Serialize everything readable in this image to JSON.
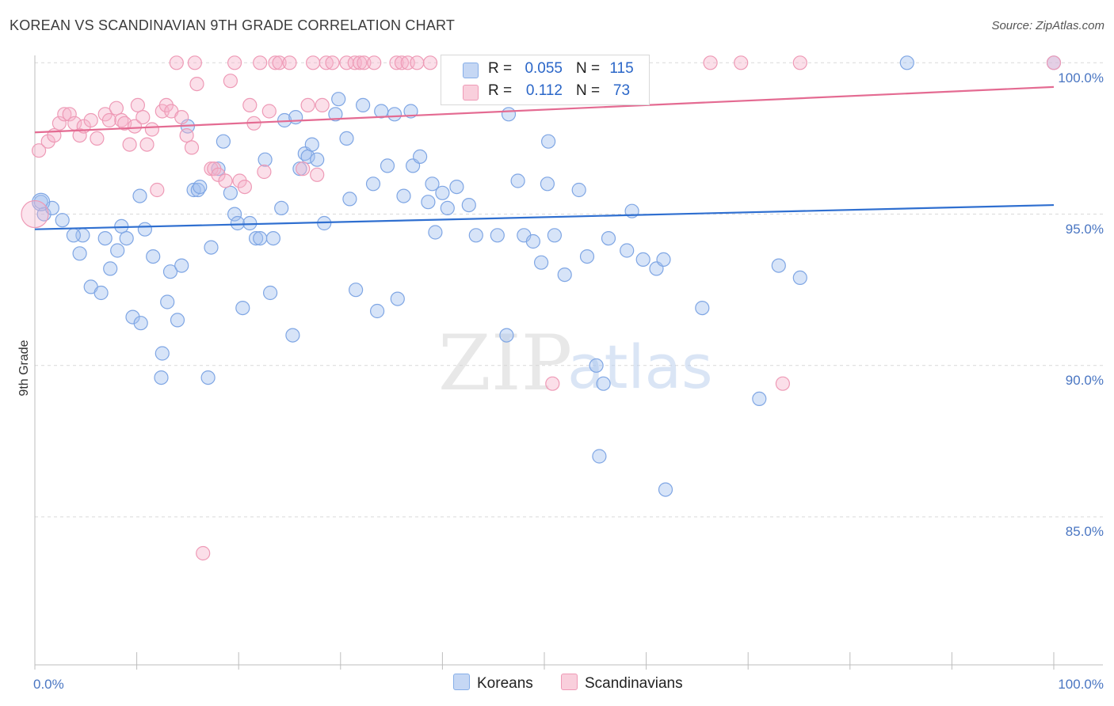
{
  "header": {
    "title": "KOREAN VS SCANDINAVIAN 9TH GRADE CORRELATION CHART",
    "source": "Source: ZipAtlas.com"
  },
  "watermark": {
    "zip": "ZIP",
    "atlas": "atlas"
  },
  "legend": {
    "rows": [
      {
        "r_label": "R =",
        "r_value": "0.055",
        "n_label": "N =",
        "n_value": "115",
        "color": "#a8c4ef"
      },
      {
        "r_label": "R =",
        "r_value": "0.112",
        "n_label": "N =",
        "n_value": "73",
        "color": "#f5b8cb"
      }
    ]
  },
  "bottom_legend": [
    {
      "label": "Koreans",
      "color": "#a8c4ef"
    },
    {
      "label": "Scandinavians",
      "color": "#f5b8cb"
    }
  ],
  "chart_data": {
    "type": "scatter",
    "ylabel": "9th Grade",
    "x_tick_labels": [
      "0.0%",
      "100.0%"
    ],
    "y_tick_labels": [
      "85.0%",
      "90.0%",
      "95.0%",
      "100.0%"
    ],
    "xlim": [
      0,
      100
    ],
    "ylim": [
      80.2,
      100.8
    ],
    "colors": {
      "Koreans": "#5b8fdc",
      "Scandinavians": "#ea7fa1",
      "grid": "#d9d9d9"
    },
    "series": [
      {
        "name": "Koreans",
        "trend": {
          "x": [
            0,
            100
          ],
          "y": [
            94.5,
            95.3
          ]
        },
        "points": [
          [
            0.6,
            95.4
          ],
          [
            0.9,
            95.0
          ],
          [
            1.7,
            95.2
          ],
          [
            2.7,
            94.8
          ],
          [
            4.4,
            93.7
          ],
          [
            4.7,
            94.3
          ],
          [
            5.5,
            92.6
          ],
          [
            6.5,
            92.4
          ],
          [
            3.8,
            94.3
          ],
          [
            6.9,
            94.2
          ],
          [
            7.4,
            93.2
          ],
          [
            8.1,
            93.8
          ],
          [
            8.5,
            94.6
          ],
          [
            9.0,
            94.2
          ],
          [
            9.6,
            91.6
          ],
          [
            10.3,
            95.6
          ],
          [
            10.4,
            91.4
          ],
          [
            10.8,
            94.5
          ],
          [
            11.6,
            93.6
          ],
          [
            12.4,
            89.6
          ],
          [
            12.5,
            90.4
          ],
          [
            13.0,
            92.1
          ],
          [
            13.3,
            93.1
          ],
          [
            14.0,
            91.5
          ],
          [
            14.4,
            93.3
          ],
          [
            15.0,
            97.9
          ],
          [
            15.6,
            95.8
          ],
          [
            16.0,
            95.8
          ],
          [
            16.2,
            95.9
          ],
          [
            17.0,
            89.6
          ],
          [
            17.3,
            93.9
          ],
          [
            18.0,
            96.5
          ],
          [
            18.5,
            97.4
          ],
          [
            19.2,
            95.7
          ],
          [
            19.6,
            95.0
          ],
          [
            19.9,
            94.7
          ],
          [
            20.4,
            91.9
          ],
          [
            21.1,
            94.7
          ],
          [
            21.7,
            94.2
          ],
          [
            22.1,
            94.2
          ],
          [
            22.6,
            96.8
          ],
          [
            23.1,
            92.4
          ],
          [
            23.4,
            94.2
          ],
          [
            24.2,
            95.2
          ],
          [
            24.5,
            98.1
          ],
          [
            25.3,
            91.0
          ],
          [
            25.6,
            98.2
          ],
          [
            26.0,
            96.5
          ],
          [
            26.5,
            97.0
          ],
          [
            26.8,
            96.9
          ],
          [
            27.2,
            97.3
          ],
          [
            27.7,
            96.8
          ],
          [
            28.4,
            94.7
          ],
          [
            29.5,
            98.3
          ],
          [
            29.8,
            98.8
          ],
          [
            30.6,
            97.5
          ],
          [
            30.9,
            95.5
          ],
          [
            31.5,
            92.5
          ],
          [
            32.2,
            98.6
          ],
          [
            33.2,
            96.0
          ],
          [
            33.6,
            91.8
          ],
          [
            34.0,
            98.4
          ],
          [
            34.6,
            96.6
          ],
          [
            35.3,
            98.3
          ],
          [
            35.6,
            92.2
          ],
          [
            36.2,
            95.6
          ],
          [
            36.9,
            98.4
          ],
          [
            37.1,
            96.6
          ],
          [
            37.8,
            96.9
          ],
          [
            38.6,
            95.4
          ],
          [
            39.0,
            96.0
          ],
          [
            39.3,
            94.4
          ],
          [
            40.0,
            95.7
          ],
          [
            40.5,
            95.2
          ],
          [
            41.0,
            99.9
          ],
          [
            41.4,
            95.9
          ],
          [
            42.1,
            98.9
          ],
          [
            42.6,
            95.3
          ],
          [
            43.3,
            94.3
          ],
          [
            45.4,
            94.3
          ],
          [
            46.3,
            91.0
          ],
          [
            46.5,
            98.3
          ],
          [
            47.4,
            96.1
          ],
          [
            48.0,
            94.3
          ],
          [
            48.9,
            94.1
          ],
          [
            49.7,
            93.4
          ],
          [
            50.3,
            96.0
          ],
          [
            50.4,
            97.4
          ],
          [
            51.0,
            94.3
          ],
          [
            52.0,
            93.0
          ],
          [
            53.4,
            95.8
          ],
          [
            54.2,
            93.6
          ],
          [
            55.1,
            90.0
          ],
          [
            55.4,
            87.0
          ],
          [
            55.8,
            89.4
          ],
          [
            56.3,
            94.2
          ],
          [
            58.1,
            93.8
          ],
          [
            58.6,
            95.1
          ],
          [
            59.7,
            93.5
          ],
          [
            61.0,
            93.2
          ],
          [
            61.7,
            93.5
          ],
          [
            61.9,
            85.9
          ],
          [
            65.5,
            91.9
          ],
          [
            71.1,
            88.9
          ],
          [
            73.0,
            93.3
          ],
          [
            75.1,
            92.9
          ],
          [
            85.6,
            100.0
          ],
          [
            100.0,
            100.0
          ]
        ]
      },
      {
        "name": "Scandinavians",
        "trend": {
          "x": [
            0,
            100
          ],
          "y": [
            97.7,
            99.2
          ]
        },
        "points": [
          [
            0.4,
            97.1
          ],
          [
            1.3,
            97.4
          ],
          [
            1.9,
            97.6
          ],
          [
            2.4,
            98.0
          ],
          [
            2.9,
            98.3
          ],
          [
            3.4,
            98.3
          ],
          [
            3.9,
            98.0
          ],
          [
            4.4,
            97.6
          ],
          [
            4.8,
            97.9
          ],
          [
            5.5,
            98.1
          ],
          [
            6.1,
            97.5
          ],
          [
            6.9,
            98.3
          ],
          [
            7.3,
            98.1
          ],
          [
            8.0,
            98.5
          ],
          [
            8.5,
            98.1
          ],
          [
            8.8,
            98.0
          ],
          [
            9.3,
            97.3
          ],
          [
            9.8,
            97.9
          ],
          [
            10.1,
            98.6
          ],
          [
            10.6,
            98.2
          ],
          [
            11.0,
            97.3
          ],
          [
            11.5,
            97.8
          ],
          [
            12.0,
            95.8
          ],
          [
            12.5,
            98.4
          ],
          [
            12.9,
            98.6
          ],
          [
            13.4,
            98.4
          ],
          [
            13.9,
            100.0
          ],
          [
            14.4,
            98.2
          ],
          [
            14.9,
            97.6
          ],
          [
            15.4,
            97.2
          ],
          [
            15.7,
            100.0
          ],
          [
            15.9,
            99.3
          ],
          [
            16.5,
            83.8
          ],
          [
            17.3,
            96.5
          ],
          [
            17.6,
            96.5
          ],
          [
            18.0,
            96.3
          ],
          [
            18.7,
            96.1
          ],
          [
            19.2,
            99.4
          ],
          [
            19.6,
            100.0
          ],
          [
            20.1,
            96.1
          ],
          [
            20.6,
            95.9
          ],
          [
            21.1,
            98.6
          ],
          [
            21.5,
            98.0
          ],
          [
            22.1,
            100.0
          ],
          [
            22.5,
            96.4
          ],
          [
            23.0,
            98.4
          ],
          [
            23.6,
            100.0
          ],
          [
            24.0,
            100.0
          ],
          [
            25.0,
            100.0
          ],
          [
            26.3,
            96.5
          ],
          [
            26.8,
            98.6
          ],
          [
            27.3,
            100.0
          ],
          [
            27.7,
            96.3
          ],
          [
            28.2,
            98.6
          ],
          [
            28.6,
            100.0
          ],
          [
            29.2,
            100.0
          ],
          [
            30.6,
            100.0
          ],
          [
            31.4,
            100.0
          ],
          [
            31.9,
            100.0
          ],
          [
            32.3,
            100.0
          ],
          [
            33.3,
            100.0
          ],
          [
            35.5,
            100.0
          ],
          [
            36.0,
            100.0
          ],
          [
            36.6,
            100.0
          ],
          [
            37.5,
            100.0
          ],
          [
            38.8,
            100.0
          ],
          [
            40.6,
            100.0
          ],
          [
            43.3,
            100.0
          ],
          [
            50.8,
            89.4
          ],
          [
            55.5,
            100.0
          ],
          [
            66.3,
            100.0
          ],
          [
            69.3,
            100.0
          ],
          [
            73.4,
            89.4
          ],
          [
            75.1,
            100.0
          ],
          [
            100.0,
            100.0
          ]
        ]
      }
    ]
  }
}
